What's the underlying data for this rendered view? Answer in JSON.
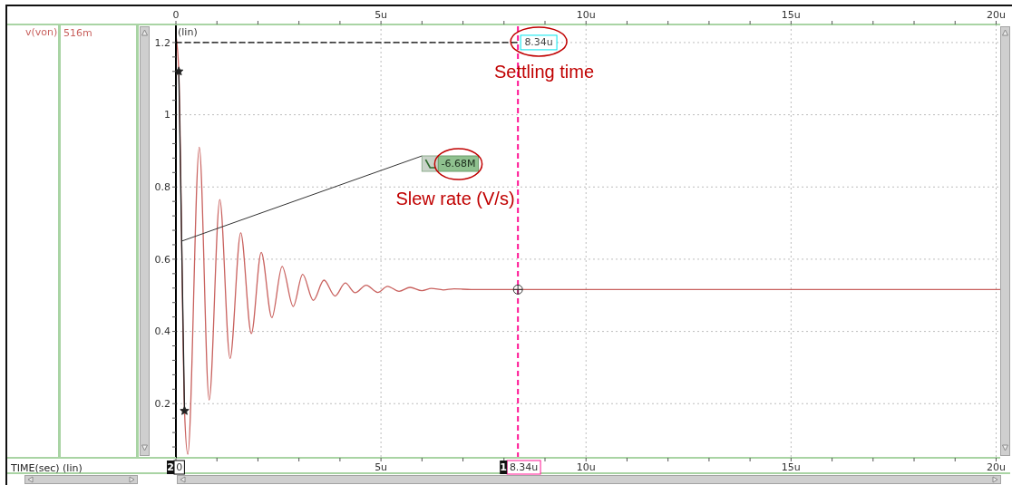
{
  "chart_data": {
    "type": "line",
    "xlim": [
      0,
      20.1
    ],
    "xticks": [
      {
        "value": 0,
        "label": null
      },
      {
        "value": 1,
        "label": null
      },
      {
        "value": 2,
        "label": null
      },
      {
        "value": 3,
        "label": null
      },
      {
        "value": 4,
        "label": null
      },
      {
        "value": 5,
        "label": "5u"
      },
      {
        "value": 6,
        "label": null
      },
      {
        "value": 7,
        "label": null
      },
      {
        "value": 8,
        "label": null
      },
      {
        "value": 9,
        "label": null
      },
      {
        "value": 10,
        "label": "10u"
      },
      {
        "value": 11,
        "label": null
      },
      {
        "value": 12,
        "label": null
      },
      {
        "value": 13,
        "label": null
      },
      {
        "value": 14,
        "label": null
      },
      {
        "value": 15,
        "label": "15u"
      },
      {
        "value": 16,
        "label": null
      },
      {
        "value": 17,
        "label": null
      },
      {
        "value": 18,
        "label": null
      },
      {
        "value": 19,
        "label": null
      },
      {
        "value": 20,
        "label": "20u"
      }
    ],
    "x2lim": [
      0,
      20.1
    ],
    "x2ticks": [
      0,
      {
        "value": 1,
        "label": null
      },
      {
        "value": 2,
        "label": null
      },
      {
        "value": 3,
        "label": null
      },
      {
        "value": 4,
        "label": null
      },
      {
        "value": 5,
        "label": "5u"
      },
      {
        "value": 6,
        "label": null
      },
      {
        "value": 7,
        "label": null
      },
      {
        "value": 8,
        "label": null
      },
      {
        "value": 9,
        "label": null
      },
      {
        "value": 10,
        "label": "10u"
      },
      {
        "value": 11,
        "label": null
      },
      {
        "value": 12,
        "label": null
      },
      {
        "value": 13,
        "label": null
      },
      {
        "value": 14,
        "label": null
      },
      {
        "value": 15,
        "label": "15u"
      },
      {
        "value": 16,
        "label": null
      },
      {
        "value": 17,
        "label": null
      },
      {
        "value": 18,
        "label": null
      },
      {
        "value": 19,
        "label": null
      },
      {
        "value": 20,
        "label": "20u"
      }
    ],
    "ylim": [
      0.05,
      1.25
    ],
    "yticks": [
      {
        "value": 0.08,
        "label": null
      },
      {
        "value": 0.12,
        "label": null
      },
      {
        "value": 0.16,
        "label": null
      },
      0.2,
      {
        "value": 0.24,
        "label": null
      },
      {
        "value": 0.28,
        "label": null
      },
      {
        "value": 0.32,
        "label": null
      },
      {
        "value": 0.36,
        "label": null
      },
      0.4,
      {
        "value": 0.44,
        "label": null
      },
      {
        "value": 0.48,
        "label": null
      },
      {
        "value": 0.52,
        "label": null
      },
      {
        "value": 0.56,
        "label": null
      },
      0.6,
      {
        "value": 0.64,
        "label": null
      },
      {
        "value": 0.68,
        "label": null
      },
      {
        "value": 0.72,
        "label": null
      },
      {
        "value": 0.76,
        "label": null
      },
      0.8,
      {
        "value": 0.84,
        "label": null
      },
      {
        "value": 0.88,
        "label": null
      },
      {
        "value": 0.92,
        "label": null
      },
      {
        "value": 0.96,
        "label": null
      },
      1,
      {
        "value": 1.04,
        "label": null
      },
      {
        "value": 1.08,
        "label": null
      },
      {
        "value": 1.12,
        "label": null
      },
      {
        "value": 1.16,
        "label": null
      },
      1.2
    ],
    "grid": true,
    "legend": "left",
    "series": [
      {
        "name": "v(von)",
        "color": "#c9625f",
        "marker": "none",
        "line_style": "solid",
        "x": [
          0,
          0.07,
          0.21,
          0.29,
          0.57,
          0.81,
          1.07,
          1.32,
          1.58,
          1.84,
          2.08,
          2.34,
          2.59,
          2.86,
          3.09,
          3.35,
          3.61,
          3.88,
          4.13,
          4.37,
          4.64,
          4.92,
          5.16,
          5.44,
          5.71,
          6.0,
          6.23,
          6.52,
          6.78,
          7.2,
          20.1
        ],
        "values": [
          1.22,
          1.12,
          0.18,
          0.06,
          0.91,
          0.21,
          0.765,
          0.325,
          0.673,
          0.394,
          0.619,
          0.438,
          0.58,
          0.469,
          0.558,
          0.486,
          0.542,
          0.498,
          0.534,
          0.507,
          0.528,
          0.508,
          0.525,
          0.511,
          0.522,
          0.513,
          0.519,
          0.515,
          0.518,
          0.516,
          0.516
        ]
      },
      {
        "color": "#222222",
        "marker": "star",
        "line_style": "solid",
        "x": [
          0.07,
          0.21
        ],
        "values": [
          1.12,
          0.18
        ]
      },
      {
        "color": "#000000",
        "marker": "none",
        "line_style": "dashed",
        "x": [
          0,
          8.34
        ],
        "values": [
          1.2,
          1.2
        ]
      },
      {
        "type": "scatter",
        "color": "#333333",
        "marker": "circle",
        "x": [
          8.34
        ],
        "values": [
          0.516
        ]
      }
    ],
    "ref_lines": [
      {
        "axis": "x",
        "value": 8.34,
        "label": "8.34u",
        "color": "#ff1493",
        "line_style": "dashed"
      },
      {
        "axis": "x",
        "value": 0,
        "label": "0",
        "color": "#000000",
        "line_style": "solid"
      }
    ],
    "annotations": [
      "(lin)",
      "Settling time",
      "Slew rate (V/s)",
      "-6.68M",
      "516m",
      "1",
      "2",
      "TIME(sec) (lin)",
      {
        "text": "8.34u",
        "x": 8.34,
        "y": 1.2
      }
    ]
  }
}
